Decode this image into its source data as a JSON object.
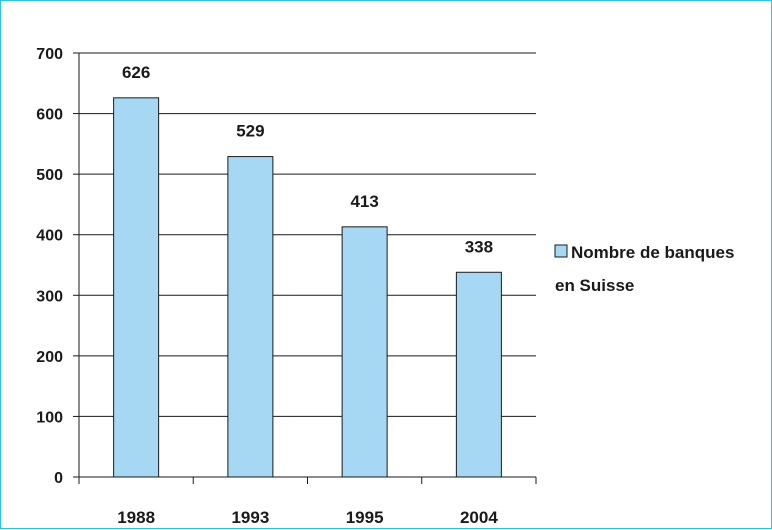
{
  "chart_data": {
    "type": "bar",
    "categories": [
      "1988",
      "1993",
      "1995",
      "2004"
    ],
    "series": [
      {
        "name": "Nombre de banques en Suisse",
        "values": [
          626,
          529,
          413,
          338
        ]
      }
    ],
    "data_labels": [
      "626",
      "529",
      "413",
      "338"
    ],
    "yticks": [
      "0",
      "100",
      "200",
      "300",
      "400",
      "500",
      "600",
      "700"
    ],
    "ylim": [
      0,
      700
    ],
    "grid": "horizontal",
    "legend": {
      "position": "right",
      "lines": [
        "Nombre de banques",
        "en Suisse"
      ]
    },
    "colors": {
      "bar_fill": "#a6d8f4",
      "bar_stroke": "#1a1a1a",
      "frame_border": "#2ec4e0",
      "grid": "#1a1a1a"
    }
  }
}
